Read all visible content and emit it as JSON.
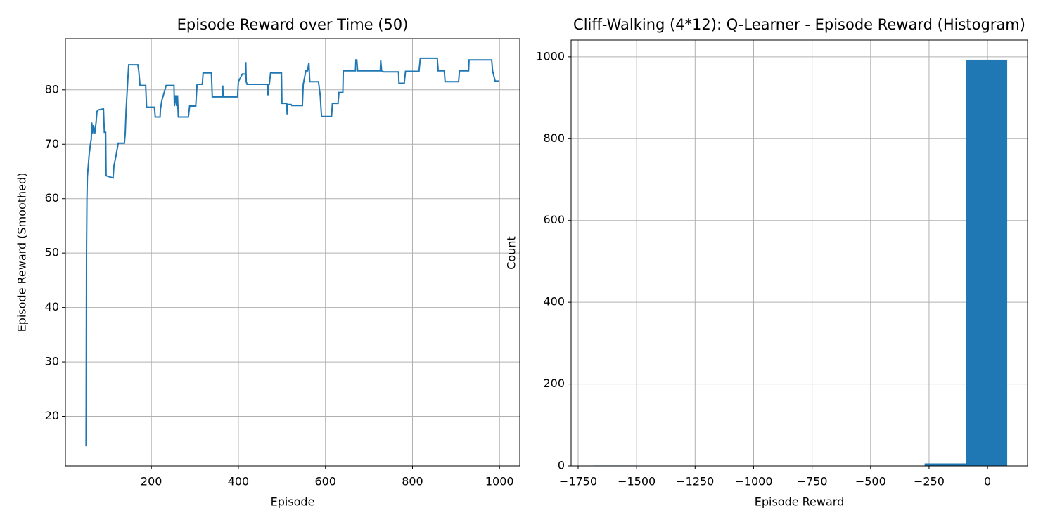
{
  "chart_data": [
    {
      "type": "line",
      "title": "Episode Reward over Time (50)",
      "xlabel": "Episode",
      "ylabel": "Episode Reward (Smoothed)",
      "x": [
        50,
        51,
        52,
        53,
        55,
        57,
        60,
        62,
        63,
        65,
        67,
        70,
        73,
        75,
        78,
        90,
        92,
        95,
        96,
        112,
        114,
        119,
        124,
        138,
        140,
        142,
        146,
        148,
        169,
        171,
        174,
        187,
        189,
        207,
        209,
        220,
        221,
        224,
        234,
        252,
        253,
        256,
        258,
        260,
        262,
        285,
        288,
        302,
        305,
        317,
        319,
        338,
        340,
        363,
        364,
        365,
        398,
        400,
        409,
        416,
        417,
        418,
        420,
        466,
        468,
        469,
        471,
        474,
        499,
        500,
        511,
        512,
        513,
        521,
        523,
        547,
        549,
        555,
        559,
        562,
        564,
        584,
        588,
        591,
        614,
        616,
        629,
        631,
        640,
        641,
        669,
        670,
        672,
        674,
        726,
        727,
        729,
        734,
        768,
        769,
        781,
        784,
        815,
        818,
        857,
        859,
        873,
        875,
        906,
        908,
        929,
        930,
        982,
        984,
        990,
        999
      ],
      "series": [
        {
          "name": "Episode Reward (Smoothed)",
          "color": "#1f77b4",
          "values": [
            14.5,
            50,
            60,
            64,
            66,
            68,
            70,
            71,
            74,
            72,
            73.5,
            72,
            74,
            76,
            76.3,
            76.5,
            72.2,
            72.2,
            64.2,
            63.8,
            66,
            68,
            70.2,
            70.2,
            72,
            76.3,
            82,
            84.6,
            84.6,
            83.5,
            80.8,
            80.8,
            76.8,
            76.8,
            75,
            75,
            76.5,
            78,
            80.8,
            80.8,
            77,
            79,
            77,
            79,
            75,
            75,
            77,
            77,
            81,
            81,
            83.1,
            83.1,
            78.7,
            78.7,
            80.8,
            78.7,
            78.7,
            81.5,
            82.9,
            82.9,
            85.1,
            81.5,
            81,
            81,
            79,
            81,
            81,
            83.1,
            83.1,
            77.5,
            77.5,
            75.5,
            77.3,
            77.3,
            77.1,
            77.1,
            81,
            83.5,
            83.5,
            85,
            81.5,
            81.5,
            79,
            75.1,
            75.1,
            77.5,
            77.5,
            79.5,
            79.5,
            83.5,
            83.5,
            85.5,
            85.5,
            83.5,
            83.5,
            85.4,
            83.5,
            83.3,
            83.3,
            81.2,
            81.2,
            83.4,
            83.4,
            85.8,
            85.8,
            83.5,
            83.5,
            81.5,
            81.5,
            83.5,
            83.5,
            85.5,
            85.5,
            83.5,
            81.6,
            81.6
          ]
        }
      ],
      "xlim": [
        2.5,
        1046.5
      ],
      "ylim": [
        10.9,
        89.4
      ],
      "xticks": [
        200,
        400,
        600,
        800,
        1000
      ],
      "yticks": [
        20,
        30,
        40,
        50,
        60,
        70,
        80
      ],
      "grid": true
    },
    {
      "type": "histogram",
      "title": "Cliff-Walking (4*12): Q-Learner - Episode Reward (Histogram)",
      "xlabel": "Episode Reward",
      "ylabel": "Count",
      "bins": [
        -1681,
        -1504.5,
        -1328,
        -1151.5,
        -975,
        -798.5,
        -622,
        -445.5,
        -269,
        -92.5,
        84
      ],
      "values": [
        1,
        0,
        0,
        0,
        0,
        0,
        0,
        0,
        6,
        993
      ],
      "color": "#1f77b4",
      "xlim": [
        -1780,
        171
      ],
      "ylim": [
        0,
        1041
      ],
      "xticks": [
        {
          "value": -1750,
          "label": "−1750"
        },
        {
          "value": -1500,
          "label": "−1500"
        },
        {
          "value": -1250,
          "label": "−1250"
        },
        {
          "value": -1000,
          "label": "−1000"
        },
        {
          "value": -750,
          "label": "−750"
        },
        {
          "value": -500,
          "label": "−500"
        },
        {
          "value": -250,
          "label": "−250"
        },
        0
      ],
      "yticks": [
        0,
        200,
        400,
        600,
        800,
        1000
      ],
      "grid": true
    }
  ]
}
